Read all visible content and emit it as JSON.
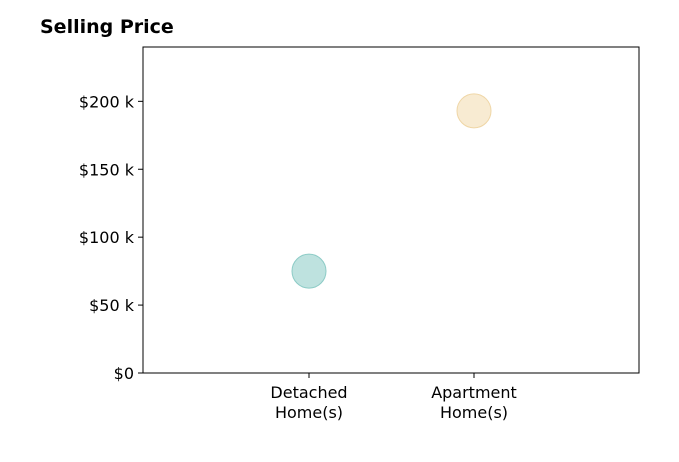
{
  "chart_data": {
    "type": "scatter",
    "title": "Selling Price",
    "categories": [
      "Detached\nHome(s)",
      "Apartment\nHome(s)"
    ],
    "values": [
      75000,
      193000
    ],
    "point_colors": [
      "#a8d8d4",
      "#f5e4c3"
    ],
    "point_stroke_colors": [
      "#8ccbc6",
      "#efd6a6"
    ],
    "y_ticks": [
      0,
      50000,
      100000,
      150000,
      200000
    ],
    "y_tick_labels": [
      "$0",
      "$50 k",
      "$100 k",
      "$150 k",
      "$200 k"
    ],
    "ylim": [
      0,
      240000
    ],
    "xlabel": "",
    "ylabel": "",
    "grid": false,
    "legend": "none"
  }
}
